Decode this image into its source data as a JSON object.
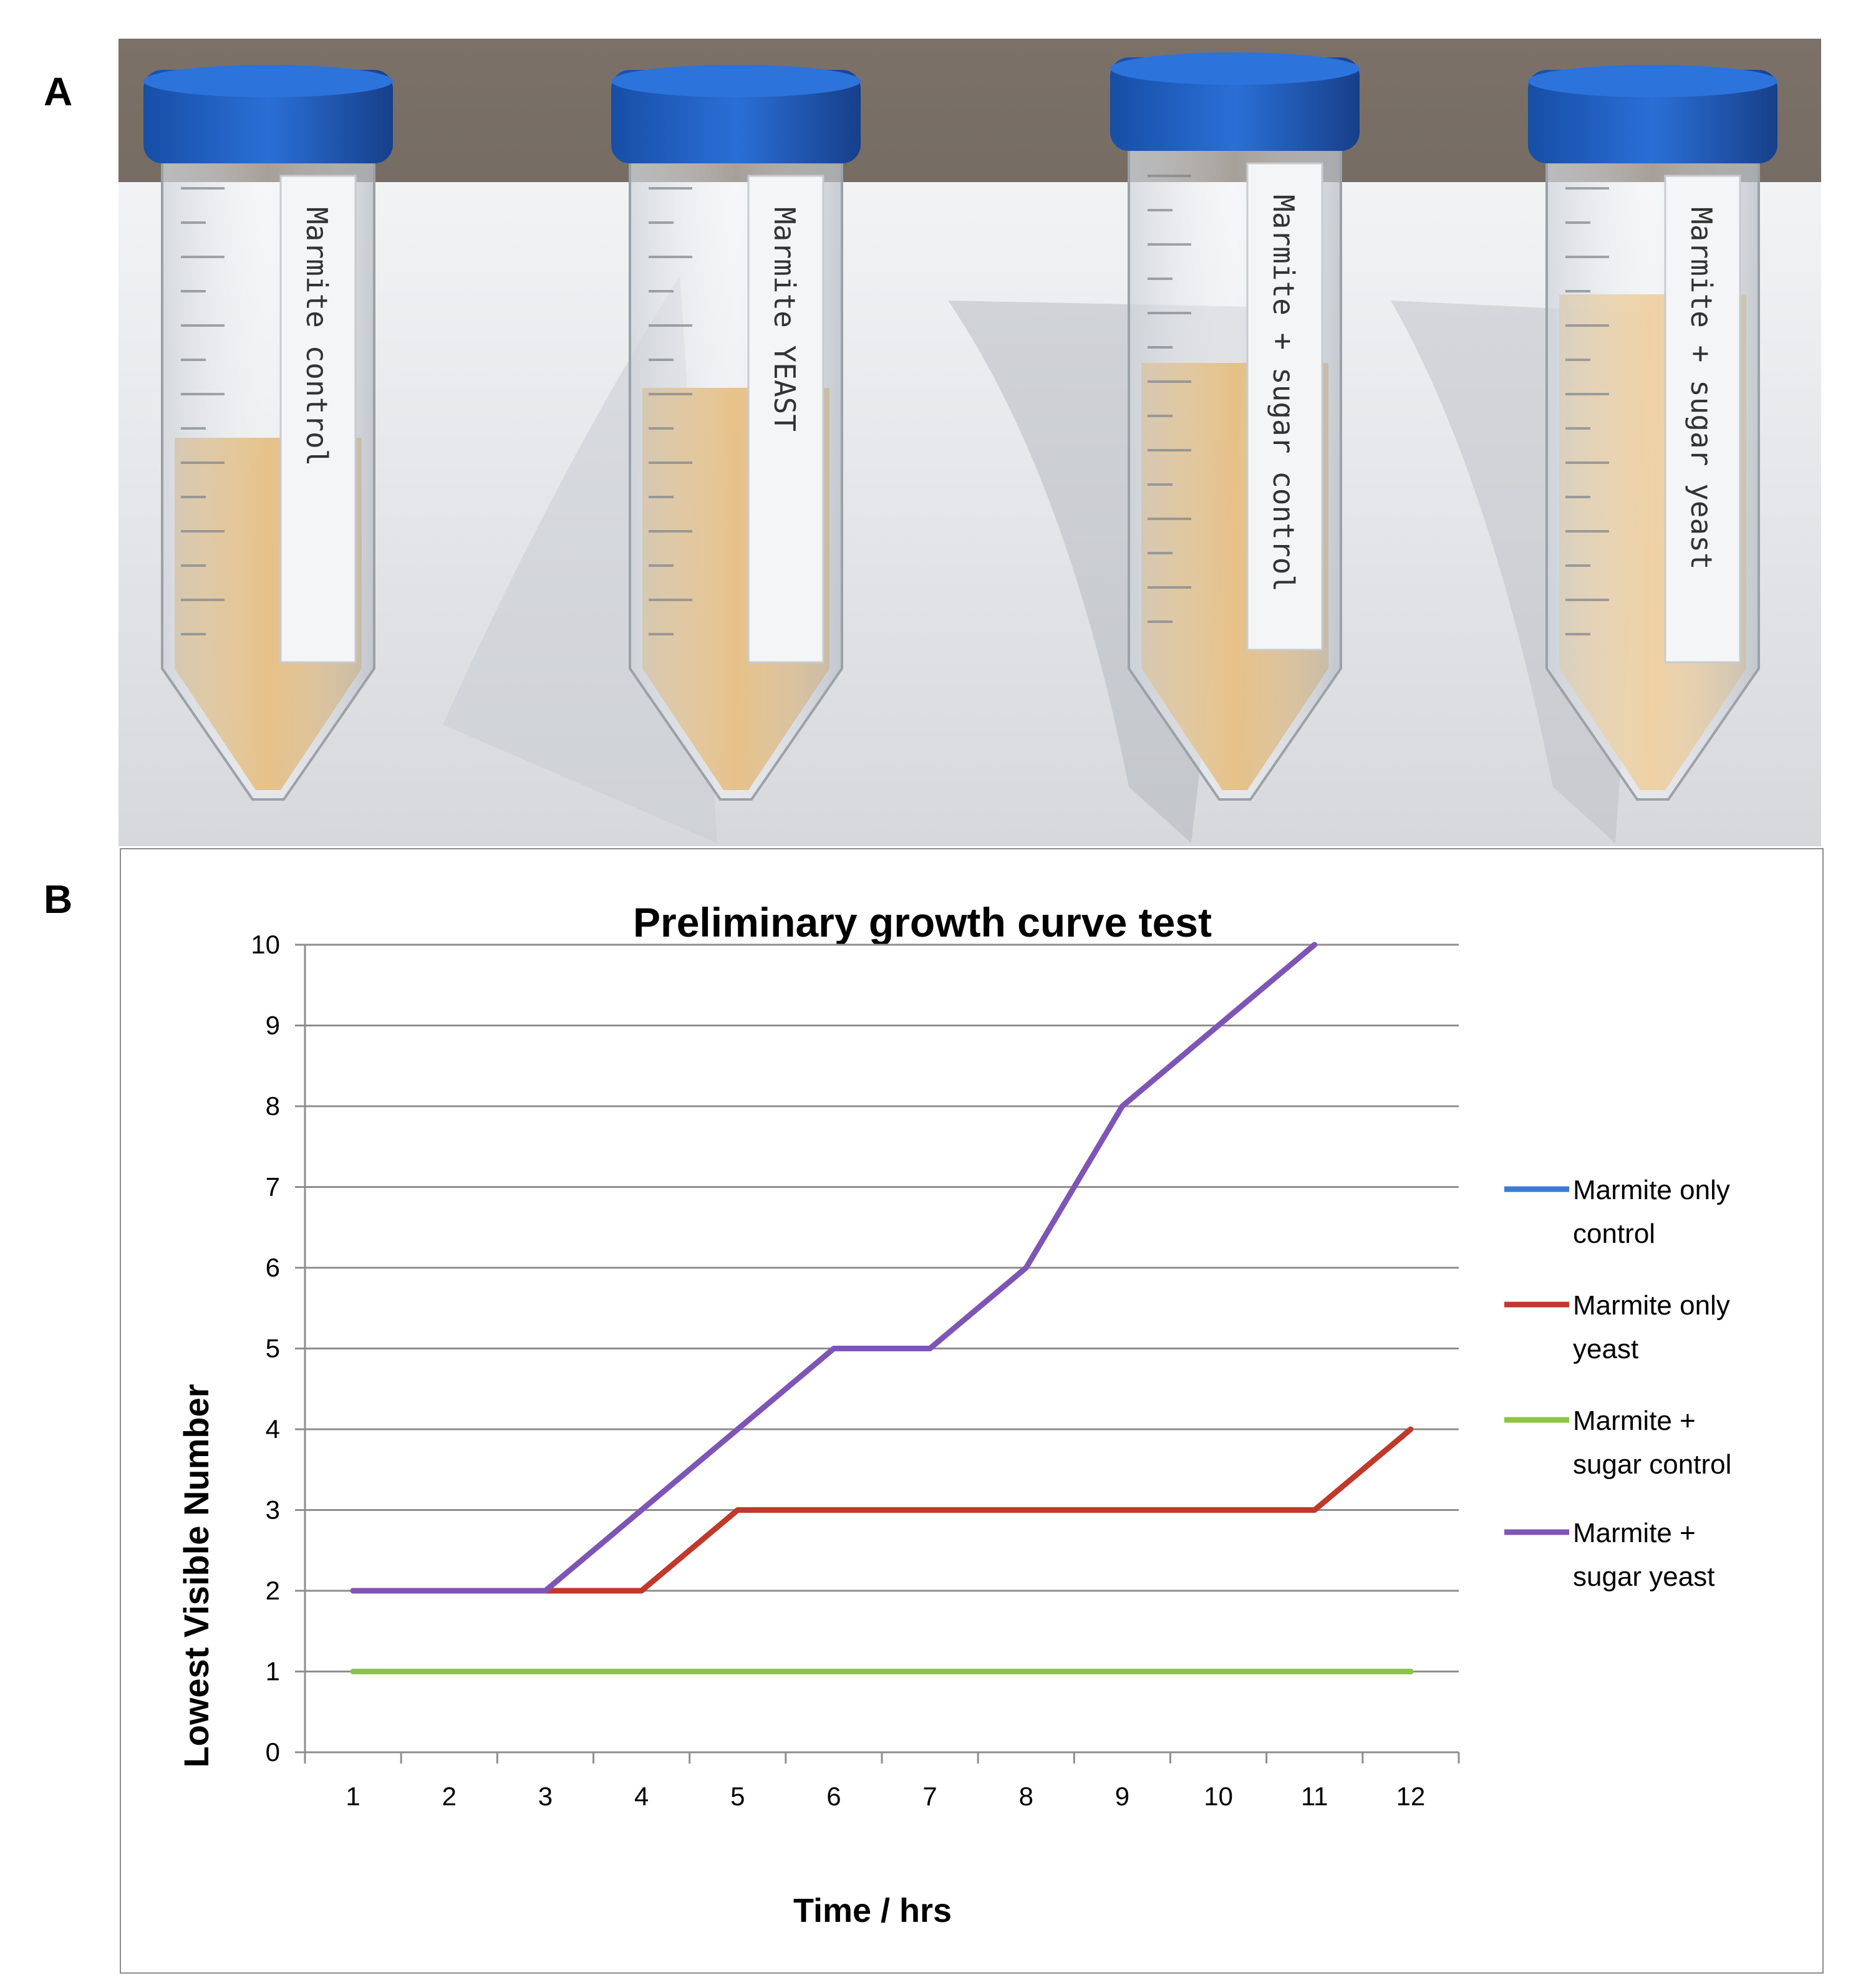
{
  "panels": {
    "a_label": "A",
    "b_label": "B"
  },
  "photo": {
    "tube_labels": [
      "Marmite control",
      "Marmite YEAST",
      "Marmite + sugar control",
      "Marmite + sugar yeast"
    ],
    "colors": {
      "cap": "#1f5fc4",
      "liquid_clear": "#d89a3c",
      "liquid_cloudy": "#e6b56a",
      "background_stone": "#6f665e",
      "tray": "#e9eaec"
    }
  },
  "chart_data": {
    "type": "line",
    "title": "Preliminary growth curve test",
    "xlabel": "Time / hrs",
    "ylabel": "Lowest Visible Number",
    "x": [
      1,
      2,
      3,
      4,
      5,
      6,
      7,
      8,
      9,
      10,
      11,
      12
    ],
    "xlim": [
      0.5,
      12.5
    ],
    "ylim": [
      0,
      10
    ],
    "yticks": [
      0,
      1,
      2,
      3,
      4,
      5,
      6,
      7,
      8,
      9,
      10
    ],
    "grid": "horizontal",
    "legend_position": "right",
    "series": [
      {
        "name": "Marmite only control",
        "legend_lines": [
          "Marmite only",
          "control"
        ],
        "color": "#3a7bd5",
        "values": [
          1,
          1,
          1,
          1,
          1,
          1,
          1,
          1,
          1,
          1,
          1,
          1
        ]
      },
      {
        "name": "Marmite only yeast",
        "legend_lines": [
          "Marmite only",
          "yeast"
        ],
        "color": "#c0392b",
        "values": [
          2,
          2,
          2,
          2,
          3,
          3,
          3,
          3,
          3,
          3,
          3,
          4
        ]
      },
      {
        "name": "Marmite + sugar control",
        "legend_lines": [
          "Marmite +",
          "sugar control"
        ],
        "color": "#8cc63f",
        "values": [
          1,
          1,
          1,
          1,
          1,
          1,
          1,
          1,
          1,
          1,
          1,
          1
        ]
      },
      {
        "name": "Marmite + sugar yeast",
        "legend_lines": [
          "Marmite +",
          "sugar yeast"
        ],
        "color": "#7e55b5",
        "values": [
          2,
          2,
          2,
          3,
          4,
          5,
          5,
          6,
          8,
          9,
          10.5,
          null
        ]
      }
    ]
  }
}
